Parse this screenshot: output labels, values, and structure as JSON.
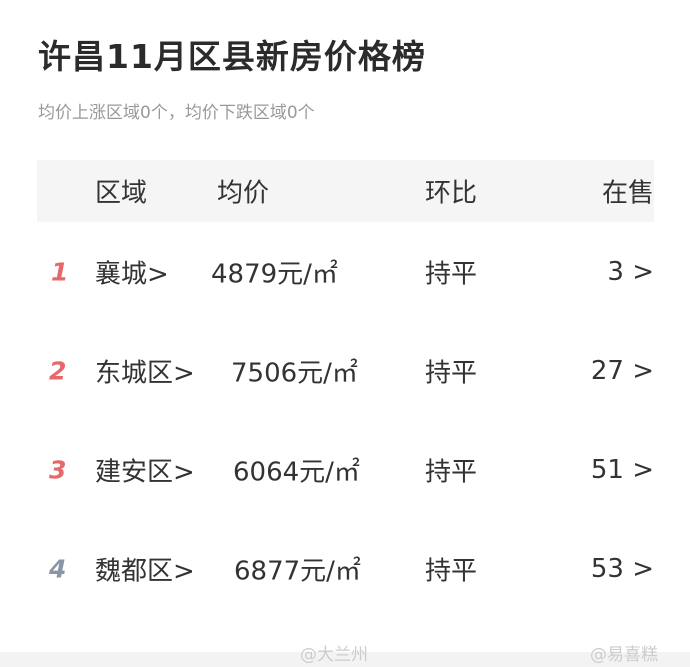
{
  "title": "许昌11月区县新房价格榜",
  "subtitle": "均价上涨区域0个，均价下跌区域0个",
  "headers": {
    "region": "区域",
    "price": "均价",
    "change": "环比",
    "onsale": "在售"
  },
  "rows": [
    {
      "rank": "1",
      "region": "襄城>",
      "price": "4879元/㎡",
      "change": "持平",
      "onsale": "3 >",
      "rank_color": "#e8686a"
    },
    {
      "rank": "2",
      "region": "东城区>",
      "price": "7506元/㎡",
      "change": "持平",
      "onsale": "27 >",
      "rank_color": "#e8686a"
    },
    {
      "rank": "3",
      "region": "建安区>",
      "price": "6064元/㎡",
      "change": "持平",
      "onsale": "51 >",
      "rank_color": "#e8686a"
    },
    {
      "rank": "4",
      "region": "魏都区>",
      "price": "6877元/㎡",
      "change": "持平",
      "onsale": "53 >",
      "rank_color": "#8a96a8"
    }
  ],
  "watermarks": [
    "@大兰州",
    "@易喜糕"
  ]
}
